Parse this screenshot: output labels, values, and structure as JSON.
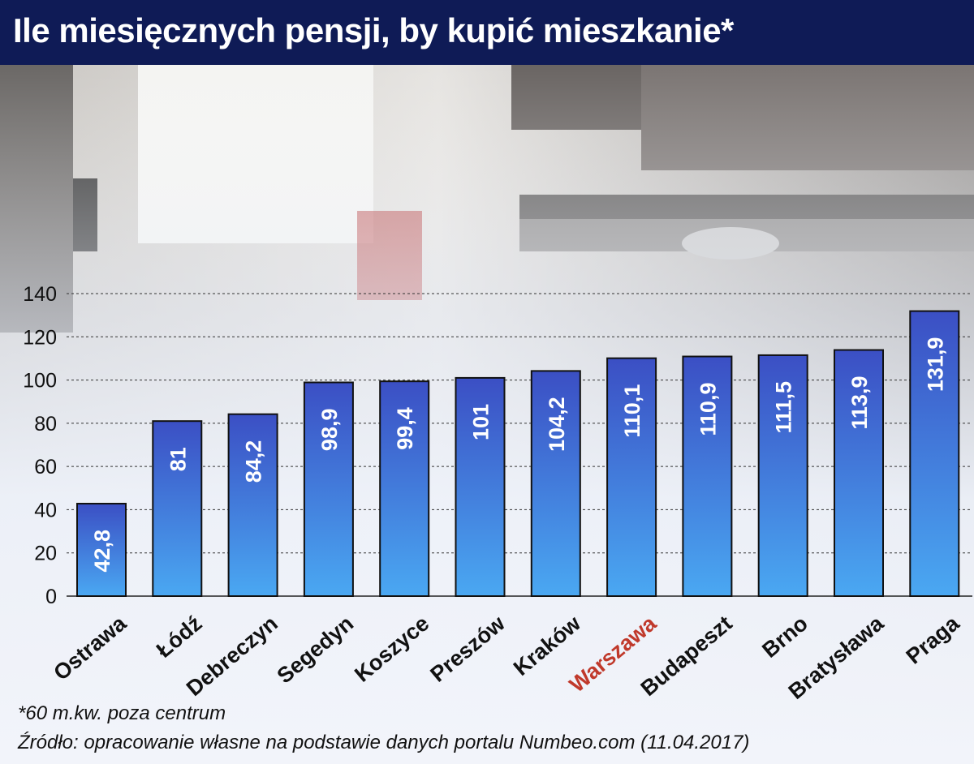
{
  "title": "Ile miesięcznych pensji, by kupić mieszkanie*",
  "chart_data": {
    "type": "bar",
    "categories": [
      "Ostrawa",
      "Łódź",
      "Debreczyn",
      "Segedyn",
      "Koszyce",
      "Preszów",
      "Kraków",
      "Warszawa",
      "Budapeszt",
      "Brno",
      "Bratysława",
      "Praga"
    ],
    "values": [
      42.8,
      81,
      84.2,
      98.9,
      99.4,
      101,
      104.2,
      110.1,
      110.9,
      111.5,
      113.9,
      131.9
    ],
    "value_labels": [
      "42,8",
      "81",
      "84,2",
      "98,9",
      "99,4",
      "101",
      "104,2",
      "110,1",
      "110,9",
      "111,5",
      "113,9",
      "131,9"
    ],
    "highlight_category": "Warszawa",
    "highlight_color": "#c0392b",
    "bar_color_top": "#3b4fc4",
    "bar_color_bottom": "#4aa8f2",
    "ylim": [
      0,
      140
    ],
    "yticks": [
      0,
      20,
      40,
      60,
      80,
      100,
      120,
      140
    ],
    "grid": "dashed horizontal",
    "xlabel": "",
    "ylabel": ""
  },
  "footnotes": {
    "note": "*60 m.kw. poza centrum",
    "source": "Źródło: opracowanie własne na podstawie danych portalu Numbeo.com (11.04.2017)"
  }
}
